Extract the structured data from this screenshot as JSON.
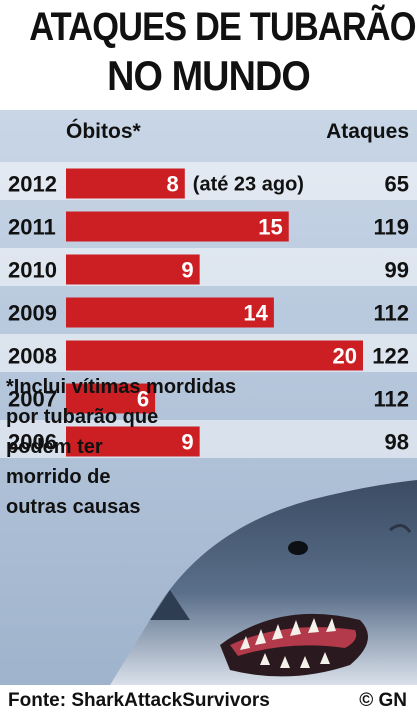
{
  "title_line1": "ATAQUES DE TUBARÃO",
  "title_line2": "NO MUNDO",
  "headers": {
    "deaths": "Óbitos*",
    "attacks": "Ataques"
  },
  "colors": {
    "bar": "#cc1f24",
    "bar_label": "#ffffff",
    "text": "#111111"
  },
  "chart_data": {
    "type": "bar",
    "orientation": "horizontal",
    "categories": [
      "2012",
      "2011",
      "2010",
      "2009",
      "2008",
      "2007",
      "2006"
    ],
    "series": [
      {
        "name": "Óbitos*",
        "values": [
          8,
          15,
          9,
          14,
          20,
          6,
          9
        ]
      }
    ],
    "attacks": [
      65,
      119,
      99,
      112,
      122,
      112,
      98
    ],
    "annotations": [
      {
        "category": "2012",
        "text": "(até 23 ago)"
      }
    ],
    "xlim": [
      0,
      20
    ],
    "grid": false
  },
  "footnote": [
    "*Inclui vítimas mordidas",
    "por tubarão que",
    "podem ter",
    "morrido de",
    "outras causas"
  ],
  "source": "Fonte: SharkAttackSurvivors",
  "credit": "© GN"
}
